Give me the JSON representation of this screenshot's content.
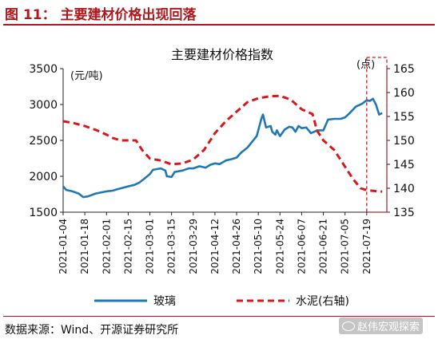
{
  "figure_label": "图 11：  主要建材价格出现回落",
  "source_note": "数据来源：Wind、开源证券研究所",
  "watermark": "赵伟宏观探索",
  "chart_data": {
    "type": "line",
    "title": "主要建材价格指数",
    "left_unit": "(元/吨)",
    "right_unit": "(点)",
    "yleft_lim": [
      1500,
      3500
    ],
    "yleft_ticks": [
      1500,
      2000,
      2500,
      3000,
      3500
    ],
    "yright_lim": [
      135,
      165
    ],
    "yright_ticks": [
      135,
      140,
      145,
      150,
      155,
      160,
      165
    ],
    "x_dates": [
      "2021-01-04",
      "2021-01-18",
      "2021-02-01",
      "2021-02-15",
      "2021-03-01",
      "2021-03-15",
      "2021-03-29",
      "2021-04-12",
      "2021-04-26",
      "2021-05-10",
      "2021-05-24",
      "2021-06-07",
      "2021-06-21",
      "2021-07-05",
      "2021-07-19"
    ],
    "x_range": [
      "2021-01-04",
      "2021-08-01"
    ],
    "highlight_start": "2021-07-19",
    "series": [
      {
        "name": "玻璃",
        "axis": "left",
        "color": "#1f78b4",
        "style": "solid",
        "points": [
          [
            "2021-01-04",
            1860
          ],
          [
            "2021-01-06",
            1810
          ],
          [
            "2021-01-10",
            1790
          ],
          [
            "2021-01-14",
            1760
          ],
          [
            "2021-01-17",
            1710
          ],
          [
            "2021-01-20",
            1720
          ],
          [
            "2021-01-25",
            1760
          ],
          [
            "2021-02-01",
            1790
          ],
          [
            "2021-02-05",
            1800
          ],
          [
            "2021-02-08",
            1820
          ],
          [
            "2021-02-15",
            1860
          ],
          [
            "2021-02-19",
            1880
          ],
          [
            "2021-02-22",
            1910
          ],
          [
            "2021-02-25",
            1960
          ],
          [
            "2021-03-01",
            2030
          ],
          [
            "2021-03-03",
            2090
          ],
          [
            "2021-03-08",
            2110
          ],
          [
            "2021-03-11",
            2080
          ],
          [
            "2021-03-12",
            2000
          ],
          [
            "2021-03-15",
            1990
          ],
          [
            "2021-03-17",
            2060
          ],
          [
            "2021-03-22",
            2080
          ],
          [
            "2021-03-26",
            2110
          ],
          [
            "2021-03-29",
            2110
          ],
          [
            "2021-04-02",
            2140
          ],
          [
            "2021-04-06",
            2120
          ],
          [
            "2021-04-09",
            2160
          ],
          [
            "2021-04-12",
            2180
          ],
          [
            "2021-04-15",
            2170
          ],
          [
            "2021-04-19",
            2220
          ],
          [
            "2021-04-23",
            2240
          ],
          [
            "2021-04-26",
            2260
          ],
          [
            "2021-04-29",
            2330
          ],
          [
            "2021-05-03",
            2400
          ],
          [
            "2021-05-06",
            2480
          ],
          [
            "2021-05-09",
            2560
          ],
          [
            "2021-05-12",
            2800
          ],
          [
            "2021-05-13",
            2860
          ],
          [
            "2021-05-15",
            2680
          ],
          [
            "2021-05-18",
            2700
          ],
          [
            "2021-05-19",
            2620
          ],
          [
            "2021-05-21",
            2580
          ],
          [
            "2021-05-22",
            2640
          ],
          [
            "2021-05-24",
            2560
          ],
          [
            "2021-05-27",
            2650
          ],
          [
            "2021-05-30",
            2690
          ],
          [
            "2021-06-01",
            2680
          ],
          [
            "2021-06-03",
            2620
          ],
          [
            "2021-06-05",
            2700
          ],
          [
            "2021-06-07",
            2670
          ],
          [
            "2021-06-10",
            2680
          ],
          [
            "2021-06-13",
            2600
          ],
          [
            "2021-06-17",
            2640
          ],
          [
            "2021-06-21",
            2640
          ],
          [
            "2021-06-24",
            2790
          ],
          [
            "2021-06-28",
            2800
          ],
          [
            "2021-07-02",
            2800
          ],
          [
            "2021-07-05",
            2820
          ],
          [
            "2021-07-08",
            2880
          ],
          [
            "2021-07-12",
            2970
          ],
          [
            "2021-07-16",
            3010
          ],
          [
            "2021-07-19",
            3060
          ],
          [
            "2021-07-21",
            3050
          ],
          [
            "2021-07-23",
            3080
          ],
          [
            "2021-07-25",
            3000
          ],
          [
            "2021-07-27",
            2860
          ],
          [
            "2021-07-29",
            2880
          ]
        ]
      },
      {
        "name": "水泥(右轴)",
        "axis": "right",
        "color": "#d7191c",
        "style": "dashed",
        "points": [
          [
            "2021-01-04",
            154.0
          ],
          [
            "2021-01-11",
            153.6
          ],
          [
            "2021-01-18",
            153.0
          ],
          [
            "2021-01-25",
            152.2
          ],
          [
            "2021-02-01",
            151.2
          ],
          [
            "2021-02-05",
            150.5
          ],
          [
            "2021-02-10",
            150.0
          ],
          [
            "2021-02-15",
            150.0
          ],
          [
            "2021-02-20",
            150.0
          ],
          [
            "2021-02-24",
            148.0
          ],
          [
            "2021-03-01",
            146.2
          ],
          [
            "2021-03-08",
            145.8
          ],
          [
            "2021-03-15",
            145.0
          ],
          [
            "2021-03-22",
            145.2
          ],
          [
            "2021-03-29",
            146.0
          ],
          [
            "2021-04-05",
            148.0
          ],
          [
            "2021-04-12",
            151.5
          ],
          [
            "2021-04-19",
            154.0
          ],
          [
            "2021-04-26",
            156.0
          ],
          [
            "2021-05-03",
            158.0
          ],
          [
            "2021-05-10",
            158.8
          ],
          [
            "2021-05-17",
            159.2
          ],
          [
            "2021-05-24",
            159.3
          ],
          [
            "2021-05-31",
            158.5
          ],
          [
            "2021-06-07",
            156.5
          ],
          [
            "2021-06-14",
            155.5
          ],
          [
            "2021-06-17",
            152.0
          ],
          [
            "2021-06-21",
            150.0
          ],
          [
            "2021-06-28",
            148.0
          ],
          [
            "2021-07-05",
            144.5
          ],
          [
            "2021-07-10",
            142.0
          ],
          [
            "2021-07-15",
            140.0
          ],
          [
            "2021-07-19",
            139.6
          ],
          [
            "2021-07-25",
            139.4
          ],
          [
            "2021-07-29",
            139.3
          ]
        ]
      }
    ],
    "legend_position": "bottom"
  }
}
